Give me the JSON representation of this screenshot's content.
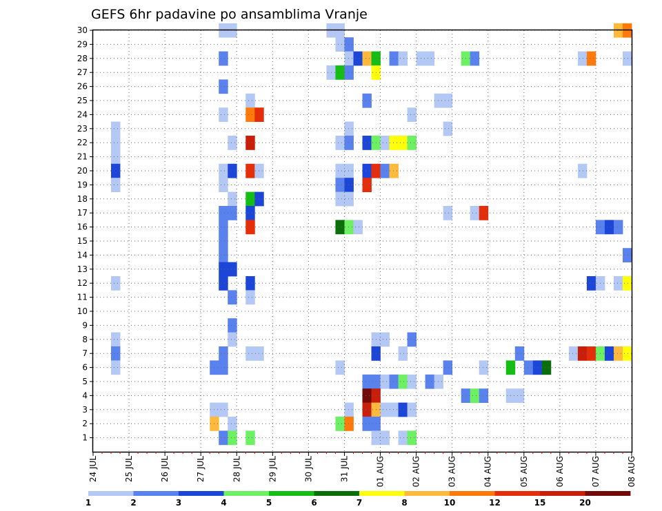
{
  "chart_data": {
    "type": "heatmap",
    "title": "GEFS 6hr padavine po ansamblima Vranje",
    "xlabel": "",
    "ylabel": "",
    "x_tick_labels": [
      "24 JUL",
      "25 JUL",
      "26 JUL",
      "27 JUL",
      "28 JUL",
      "29 JUL",
      "30 JUL",
      "31 JUL",
      "01 AUG",
      "02 AUG",
      "03 AUG",
      "04 AUG",
      "05 AUG",
      "06 AUG",
      "07 AUG",
      "08 AUG"
    ],
    "x_range_steps": [
      0,
      60
    ],
    "steps_per_day": 4,
    "y_range": [
      0,
      30
    ],
    "y_ticks": [
      1,
      2,
      3,
      4,
      5,
      6,
      7,
      8,
      9,
      10,
      11,
      12,
      13,
      14,
      15,
      16,
      17,
      18,
      19,
      20,
      21,
      22,
      23,
      24,
      25,
      26,
      27,
      28,
      29,
      30
    ],
    "grid": true,
    "legend": {
      "position": "bottom",
      "colors": [
        "#b4c8f5",
        "#5a82ee",
        "#1c46d8",
        "#6ef064",
        "#14be14",
        "#0a6e0a",
        "#ffff0a",
        "#ffb93c",
        "#ff7a0a",
        "#e62d0a",
        "#c81e0a",
        "#730a0a"
      ],
      "labels": [
        "1",
        "2",
        "3",
        "4",
        "5",
        "6",
        "7",
        "8",
        "10",
        "12",
        "15",
        "20"
      ]
    },
    "cells": [
      {
        "member": 30,
        "step": 15,
        "value": 1
      },
      {
        "member": 30,
        "step": 16,
        "value": 1
      },
      {
        "member": 30,
        "step": 27,
        "value": 1
      },
      {
        "member": 30,
        "step": 28,
        "value": 1
      },
      {
        "member": 30,
        "step": 59,
        "value": 8
      },
      {
        "member": 30,
        "step": 60,
        "value": 10
      },
      {
        "member": 29,
        "step": 28,
        "value": 1
      },
      {
        "member": 29,
        "step": 29,
        "value": 2
      },
      {
        "member": 28,
        "step": 15,
        "value": 2
      },
      {
        "member": 28,
        "step": 29,
        "value": 1
      },
      {
        "member": 28,
        "step": 30,
        "value": 3
      },
      {
        "member": 28,
        "step": 31,
        "value": 8
      },
      {
        "member": 28,
        "step": 32,
        "value": 5
      },
      {
        "member": 28,
        "step": 34,
        "value": 2
      },
      {
        "member": 28,
        "step": 35,
        "value": 1
      },
      {
        "member": 28,
        "step": 37,
        "value": 1
      },
      {
        "member": 28,
        "step": 38,
        "value": 1
      },
      {
        "member": 28,
        "step": 42,
        "value": 4
      },
      {
        "member": 28,
        "step": 43,
        "value": 2
      },
      {
        "member": 28,
        "step": 55,
        "value": 1
      },
      {
        "member": 28,
        "step": 56,
        "value": 10
      },
      {
        "member": 28,
        "step": 60,
        "value": 1
      },
      {
        "member": 27,
        "step": 27,
        "value": 1
      },
      {
        "member": 27,
        "step": 28,
        "value": 5
      },
      {
        "member": 27,
        "step": 29,
        "value": 2
      },
      {
        "member": 27,
        "step": 32,
        "value": 7
      },
      {
        "member": 26,
        "step": 15,
        "value": 2
      },
      {
        "member": 25,
        "step": 18,
        "value": 1
      },
      {
        "member": 25,
        "step": 31,
        "value": 2
      },
      {
        "member": 25,
        "step": 39,
        "value": 1
      },
      {
        "member": 25,
        "step": 40,
        "value": 1
      },
      {
        "member": 24,
        "step": 15,
        "value": 1
      },
      {
        "member": 24,
        "step": 18,
        "value": 10
      },
      {
        "member": 24,
        "step": 19,
        "value": 12
      },
      {
        "member": 24,
        "step": 36,
        "value": 1
      },
      {
        "member": 23,
        "step": 3,
        "value": 1
      },
      {
        "member": 23,
        "step": 29,
        "value": 1
      },
      {
        "member": 23,
        "step": 40,
        "value": 1
      },
      {
        "member": 22,
        "step": 3,
        "value": 1
      },
      {
        "member": 22,
        "step": 16,
        "value": 1
      },
      {
        "member": 22,
        "step": 18,
        "value": 15
      },
      {
        "member": 22,
        "step": 28,
        "value": 1
      },
      {
        "member": 22,
        "step": 29,
        "value": 2
      },
      {
        "member": 22,
        "step": 31,
        "value": 3
      },
      {
        "member": 22,
        "step": 32,
        "value": 4
      },
      {
        "member": 22,
        "step": 33,
        "value": 1
      },
      {
        "member": 22,
        "step": 34,
        "value": 7
      },
      {
        "member": 22,
        "step": 35,
        "value": 7
      },
      {
        "member": 22,
        "step": 36,
        "value": 4
      },
      {
        "member": 21,
        "step": 3,
        "value": 1
      },
      {
        "member": 20,
        "step": 3,
        "value": 3
      },
      {
        "member": 20,
        "step": 15,
        "value": 1
      },
      {
        "member": 20,
        "step": 16,
        "value": 3
      },
      {
        "member": 20,
        "step": 18,
        "value": 12
      },
      {
        "member": 20,
        "step": 19,
        "value": 1
      },
      {
        "member": 20,
        "step": 28,
        "value": 1
      },
      {
        "member": 20,
        "step": 29,
        "value": 1
      },
      {
        "member": 20,
        "step": 31,
        "value": 3
      },
      {
        "member": 20,
        "step": 32,
        "value": 12
      },
      {
        "member": 20,
        "step": 33,
        "value": 2
      },
      {
        "member": 20,
        "step": 34,
        "value": 8
      },
      {
        "member": 20,
        "step": 55,
        "value": 1
      },
      {
        "member": 19,
        "step": 3,
        "value": 1
      },
      {
        "member": 19,
        "step": 15,
        "value": 1
      },
      {
        "member": 19,
        "step": 28,
        "value": 2
      },
      {
        "member": 19,
        "step": 29,
        "value": 3
      },
      {
        "member": 19,
        "step": 31,
        "value": 12
      },
      {
        "member": 18,
        "step": 16,
        "value": 1
      },
      {
        "member": 18,
        "step": 18,
        "value": 5
      },
      {
        "member": 18,
        "step": 19,
        "value": 3
      },
      {
        "member": 18,
        "step": 28,
        "value": 1
      },
      {
        "member": 18,
        "step": 29,
        "value": 1
      },
      {
        "member": 17,
        "step": 15,
        "value": 2
      },
      {
        "member": 17,
        "step": 16,
        "value": 2
      },
      {
        "member": 17,
        "step": 18,
        "value": 3
      },
      {
        "member": 17,
        "step": 40,
        "value": 1
      },
      {
        "member": 17,
        "step": 43,
        "value": 1
      },
      {
        "member": 17,
        "step": 44,
        "value": 12
      },
      {
        "member": 16,
        "step": 15,
        "value": 2
      },
      {
        "member": 16,
        "step": 18,
        "value": 12
      },
      {
        "member": 16,
        "step": 28,
        "value": 6
      },
      {
        "member": 16,
        "step": 29,
        "value": 4
      },
      {
        "member": 16,
        "step": 30,
        "value": 1
      },
      {
        "member": 16,
        "step": 57,
        "value": 2
      },
      {
        "member": 16,
        "step": 58,
        "value": 3
      },
      {
        "member": 16,
        "step": 59,
        "value": 2
      },
      {
        "member": 15,
        "step": 15,
        "value": 2
      },
      {
        "member": 14,
        "step": 15,
        "value": 2
      },
      {
        "member": 14,
        "step": 60,
        "value": 2
      },
      {
        "member": 13,
        "step": 15,
        "value": 3
      },
      {
        "member": 13,
        "step": 16,
        "value": 3
      },
      {
        "member": 12,
        "step": 3,
        "value": 1
      },
      {
        "member": 12,
        "step": 15,
        "value": 3
      },
      {
        "member": 12,
        "step": 18,
        "value": 3
      },
      {
        "member": 12,
        "step": 56,
        "value": 3
      },
      {
        "member": 12,
        "step": 57,
        "value": 1
      },
      {
        "member": 12,
        "step": 59,
        "value": 1
      },
      {
        "member": 12,
        "step": 60,
        "value": 7
      },
      {
        "member": 11,
        "step": 16,
        "value": 2
      },
      {
        "member": 11,
        "step": 18,
        "value": 1
      },
      {
        "member": 9,
        "step": 16,
        "value": 2
      },
      {
        "member": 8,
        "step": 3,
        "value": 1
      },
      {
        "member": 8,
        "step": 16,
        "value": 1
      },
      {
        "member": 8,
        "step": 32,
        "value": 1
      },
      {
        "member": 8,
        "step": 33,
        "value": 1
      },
      {
        "member": 8,
        "step": 36,
        "value": 2
      },
      {
        "member": 7,
        "step": 3,
        "value": 2
      },
      {
        "member": 7,
        "step": 15,
        "value": 2
      },
      {
        "member": 7,
        "step": 18,
        "value": 1
      },
      {
        "member": 7,
        "step": 19,
        "value": 1
      },
      {
        "member": 7,
        "step": 32,
        "value": 3
      },
      {
        "member": 7,
        "step": 35,
        "value": 1
      },
      {
        "member": 7,
        "step": 48,
        "value": 2
      },
      {
        "member": 7,
        "step": 54,
        "value": 1
      },
      {
        "member": 7,
        "step": 55,
        "value": 15
      },
      {
        "member": 7,
        "step": 56,
        "value": 12
      },
      {
        "member": 7,
        "step": 57,
        "value": 4
      },
      {
        "member": 7,
        "step": 58,
        "value": 3
      },
      {
        "member": 7,
        "step": 59,
        "value": 8
      },
      {
        "member": 7,
        "step": 60,
        "value": 7
      },
      {
        "member": 6,
        "step": 3,
        "value": 1
      },
      {
        "member": 6,
        "step": 14,
        "value": 2
      },
      {
        "member": 6,
        "step": 15,
        "value": 2
      },
      {
        "member": 6,
        "step": 28,
        "value": 1
      },
      {
        "member": 6,
        "step": 40,
        "value": 2
      },
      {
        "member": 6,
        "step": 44,
        "value": 1
      },
      {
        "member": 6,
        "step": 47,
        "value": 5
      },
      {
        "member": 6,
        "step": 49,
        "value": 2
      },
      {
        "member": 6,
        "step": 50,
        "value": 3
      },
      {
        "member": 6,
        "step": 51,
        "value": 6
      },
      {
        "member": 5,
        "step": 31,
        "value": 2
      },
      {
        "member": 5,
        "step": 32,
        "value": 2
      },
      {
        "member": 5,
        "step": 33,
        "value": 1
      },
      {
        "member": 5,
        "step": 34,
        "value": 2
      },
      {
        "member": 5,
        "step": 35,
        "value": 4
      },
      {
        "member": 5,
        "step": 36,
        "value": 1
      },
      {
        "member": 5,
        "step": 38,
        "value": 2
      },
      {
        "member": 5,
        "step": 39,
        "value": 1
      },
      {
        "member": 4,
        "step": 31,
        "value": 20
      },
      {
        "member": 4,
        "step": 32,
        "value": 15
      },
      {
        "member": 4,
        "step": 42,
        "value": 2
      },
      {
        "member": 4,
        "step": 43,
        "value": 4
      },
      {
        "member": 4,
        "step": 44,
        "value": 2
      },
      {
        "member": 4,
        "step": 47,
        "value": 1
      },
      {
        "member": 4,
        "step": 48,
        "value": 1
      },
      {
        "member": 3,
        "step": 14,
        "value": 1
      },
      {
        "member": 3,
        "step": 15,
        "value": 1
      },
      {
        "member": 3,
        "step": 29,
        "value": 1
      },
      {
        "member": 3,
        "step": 31,
        "value": 15
      },
      {
        "member": 3,
        "step": 32,
        "value": 8
      },
      {
        "member": 3,
        "step": 33,
        "value": 1
      },
      {
        "member": 3,
        "step": 34,
        "value": 1
      },
      {
        "member": 3,
        "step": 35,
        "value": 3
      },
      {
        "member": 3,
        "step": 36,
        "value": 1
      },
      {
        "member": 2,
        "step": 14,
        "value": 8
      },
      {
        "member": 2,
        "step": 16,
        "value": 1
      },
      {
        "member": 2,
        "step": 28,
        "value": 4
      },
      {
        "member": 2,
        "step": 29,
        "value": 10
      },
      {
        "member": 2,
        "step": 31,
        "value": 2
      },
      {
        "member": 2,
        "step": 32,
        "value": 2
      },
      {
        "member": 1,
        "step": 15,
        "value": 2
      },
      {
        "member": 1,
        "step": 16,
        "value": 4
      },
      {
        "member": 1,
        "step": 18,
        "value": 4
      },
      {
        "member": 1,
        "step": 32,
        "value": 1
      },
      {
        "member": 1,
        "step": 33,
        "value": 1
      },
      {
        "member": 1,
        "step": 35,
        "value": 1
      },
      {
        "member": 1,
        "step": 36,
        "value": 4
      }
    ]
  }
}
